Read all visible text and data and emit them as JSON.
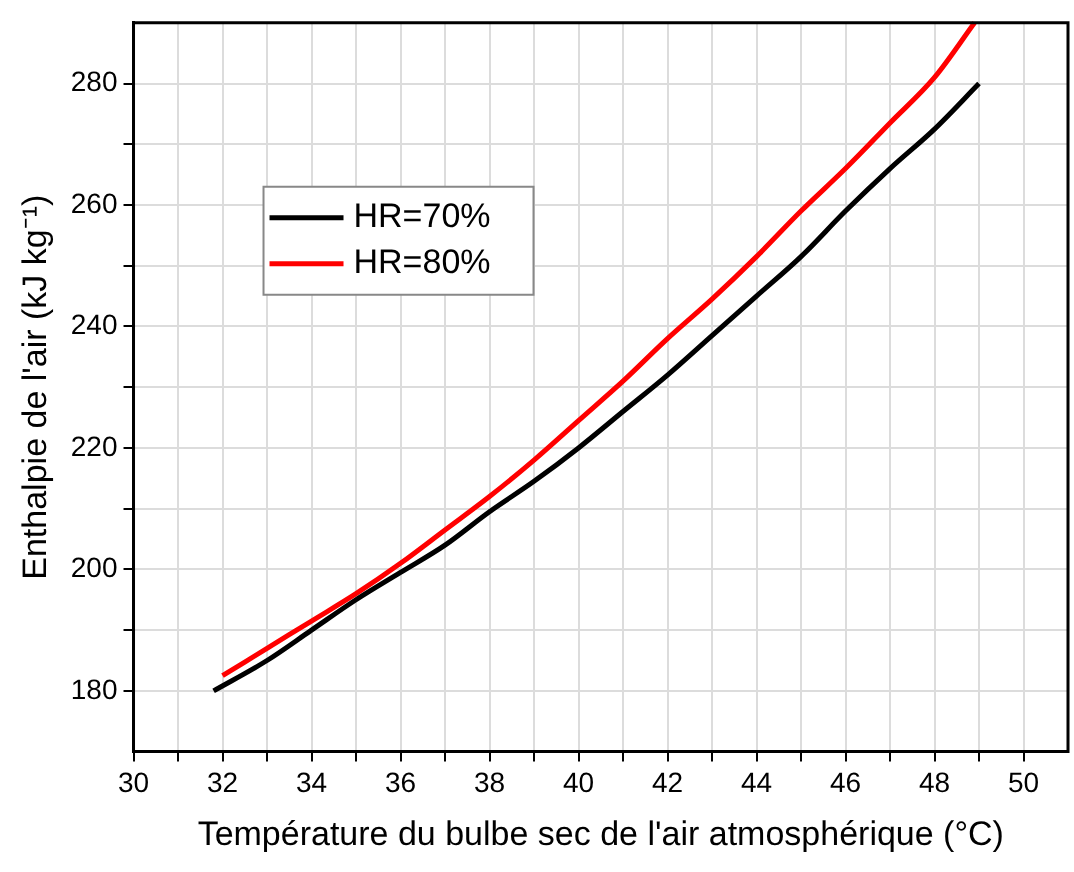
{
  "chart_data": {
    "type": "line",
    "xlabel": "Température du bulbe sec de l'air atmosphérique (°C)",
    "ylabel": "Enthalpie de l'air (kJ kg⁻¹)",
    "series": [
      {
        "name": "HR=70%",
        "color": "#000000",
        "x": [
          31.8,
          33,
          34,
          35,
          36,
          37,
          38,
          39,
          40,
          41,
          42,
          43,
          44,
          45,
          46,
          47,
          48,
          49
        ],
        "values": [
          180,
          185,
          190,
          195,
          199.5,
          204,
          209.5,
          214.5,
          220,
          226,
          232,
          238.5,
          245,
          251.5,
          259,
          266,
          272.5,
          280
        ]
      },
      {
        "name": "HR=80%",
        "color": "#ff0000",
        "x": [
          32,
          33,
          34,
          35,
          36,
          37,
          38,
          39,
          40,
          41,
          42,
          43,
          44,
          45,
          46,
          47,
          48,
          48.9
        ],
        "values": [
          182.5,
          187,
          191.5,
          196,
          201,
          206.5,
          212,
          218,
          224.5,
          231,
          238,
          244.5,
          251.5,
          259,
          266,
          273.5,
          281,
          290
        ]
      }
    ],
    "xlim": [
      30,
      51
    ],
    "xticks": [
      30,
      {
        "value": 31,
        "label": null
      },
      32,
      {
        "value": 33,
        "label": null
      },
      34,
      {
        "value": 35,
        "label": null
      },
      36,
      {
        "value": 37,
        "label": null
      },
      38,
      {
        "value": 39,
        "label": null
      },
      40,
      {
        "value": 41,
        "label": null
      },
      42,
      {
        "value": 43,
        "label": null
      },
      44,
      {
        "value": 45,
        "label": null
      },
      46,
      {
        "value": 47,
        "label": null
      },
      48,
      {
        "value": 49,
        "label": null
      },
      50
    ],
    "ylim": [
      170,
      290
    ],
    "yticks": [
      180,
      {
        "value": 190,
        "label": null
      },
      200,
      {
        "value": 210,
        "label": null
      },
      220,
      {
        "value": 230,
        "label": null
      },
      240,
      {
        "value": 250,
        "label": null
      },
      260,
      {
        "value": 270,
        "label": null
      },
      280
    ],
    "grid": true,
    "legend": "top left",
    "marker": "none",
    "line_style": "solid"
  }
}
